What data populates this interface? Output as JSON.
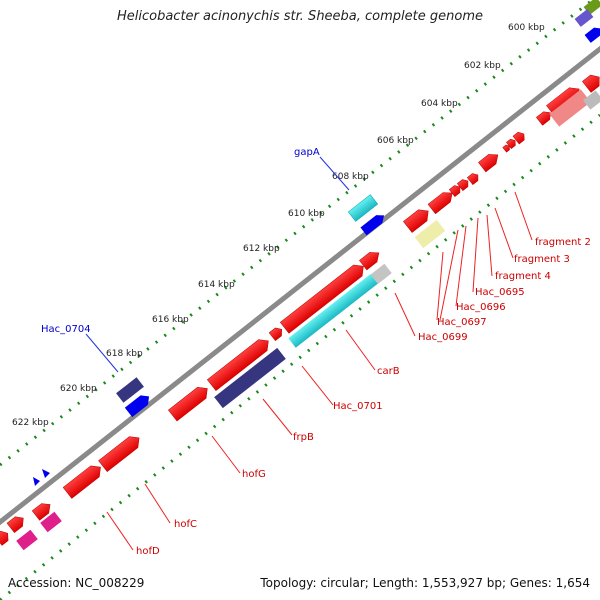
{
  "title": "Helicobacter acinonychis str. Sheeba, complete genome",
  "footer": {
    "accession": "Accession: NC_008229",
    "stats": "Topology: circular; Length: 1,553,927 bp; Genes: 1,654"
  },
  "colors": {
    "gene_red": "#ee0000",
    "backbone": "#8a8a8a",
    "tick": "#1a8a1a",
    "label_red": "#cc0000",
    "label_blue": "#0000cc",
    "leader_red": "#ee2222",
    "leader_blue": "#2233dd"
  },
  "scale_labels": [
    "600 kbp",
    "602 kbp",
    "604 kbp",
    "606 kbp",
    "608 kbp",
    "610 kbp",
    "612 kbp",
    "614 kbp",
    "616 kbp",
    "618 kbp",
    "620 kbp",
    "622 kbp"
  ],
  "labels_red": [
    "fragment 2",
    "fragment 3",
    "fragment 4",
    "Hac_0695",
    "Hac_0696",
    "Hac_0697",
    "Hac_0699",
    "carB",
    "Hac_0701",
    "frpB",
    "hofG",
    "hofC",
    "hofD"
  ],
  "labels_blue": [
    "gapA",
    "Hac_0704"
  ]
}
